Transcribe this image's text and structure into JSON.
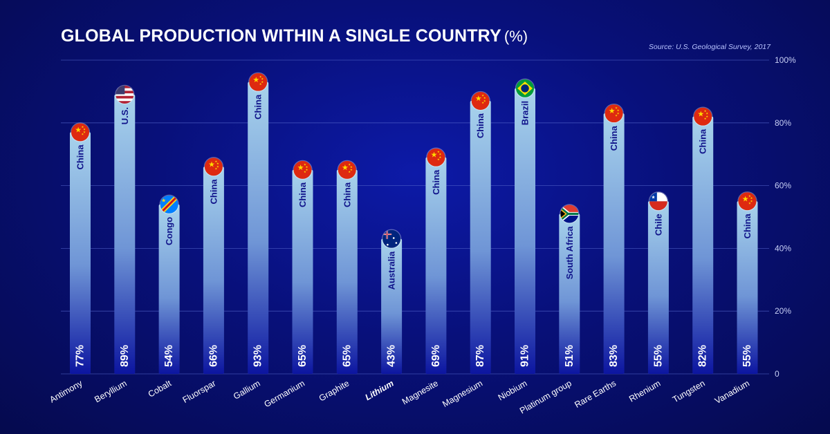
{
  "title": "GLOBAL PRODUCTION WITHIN A SINGLE COUNTRY",
  "title_unit": "(%)",
  "source": "Source: U.S. Geological Survey, 2017",
  "colors": {
    "background": "#08107a",
    "bar_top": "#a8d3ec",
    "bar_bottom": "#0c15a0",
    "grid": "#5566cc",
    "text": "#ffffff"
  },
  "chart_data": {
    "type": "bar",
    "title": "GLOBAL PRODUCTION WITHIN A SINGLE COUNTRY (%)",
    "xlabel": "",
    "ylabel": "",
    "ylim": [
      0,
      100
    ],
    "yticks": [
      0,
      20,
      40,
      60,
      80,
      100
    ],
    "ytick_labels": [
      "0",
      "20%",
      "40%",
      "60%",
      "80%",
      "100%"
    ],
    "grid": true,
    "categories": [
      "Antimony",
      "Beryllium",
      "Cobalt",
      "Fluorspar",
      "Gallium",
      "Germanium",
      "Graphite",
      "Lithium",
      "Magnesite",
      "Magnesium",
      "Niobium",
      "Platinum group",
      "Rare Earths",
      "Rhenium",
      "Tungsten",
      "Vanadium"
    ],
    "highlighted_category": "Lithium",
    "values": [
      77,
      89,
      54,
      66,
      93,
      65,
      65,
      43,
      69,
      87,
      91,
      51,
      83,
      55,
      82,
      55
    ],
    "value_labels": [
      "77%",
      "89%",
      "54%",
      "66%",
      "93%",
      "65%",
      "65%",
      "43%",
      "69%",
      "87%",
      "91%",
      "51%",
      "83%",
      "55%",
      "82%",
      "55%"
    ],
    "countries": [
      "China",
      "U.S.",
      "Congo",
      "China",
      "China",
      "China",
      "China",
      "Australia",
      "China",
      "China",
      "Brazil",
      "South Africa",
      "China",
      "Chile",
      "China",
      "China"
    ],
    "flags": [
      "china-flag",
      "us-flag",
      "congo-flag",
      "china-flag",
      "china-flag",
      "china-flag",
      "china-flag",
      "australia-flag",
      "china-flag",
      "china-flag",
      "brazil-flag",
      "south-africa-flag",
      "china-flag",
      "chile-flag",
      "china-flag",
      "china-flag"
    ]
  }
}
